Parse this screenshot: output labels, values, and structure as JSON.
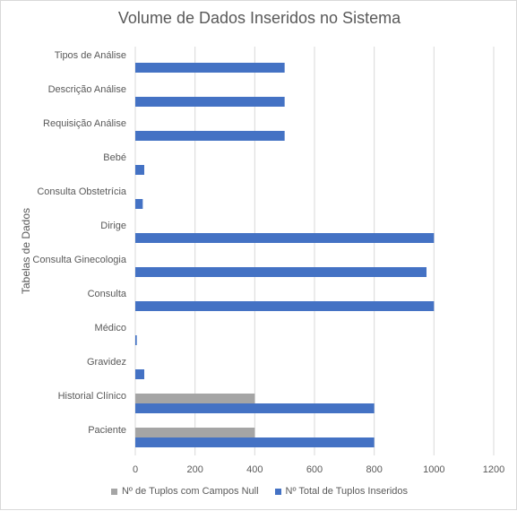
{
  "chart_data": {
    "type": "bar",
    "orientation": "horizontal",
    "title": "Volume de Dados Inseridos no Sistema",
    "xlabel": "",
    "ylabel": "Tabelas de Dados",
    "xlim": [
      0,
      1200
    ],
    "xticks": [
      0,
      200,
      400,
      600,
      800,
      1000,
      1200
    ],
    "grid": "vertical",
    "legend_position": "bottom",
    "categories": [
      "Tipos de Análise",
      "Descrição Análise",
      "Requisição Análise",
      "Bebé",
      "Consulta Obstetrícia",
      "Dirige",
      "Consulta Ginecologia",
      "Consulta",
      "Médico",
      "Gravidez",
      "Historial Clínico",
      "Paciente"
    ],
    "series": [
      {
        "name": "Nº de Tuplos com Campos Null",
        "color": "#a5a5a5",
        "values": [
          0,
          0,
          0,
          0,
          0,
          0,
          0,
          0,
          0,
          0,
          400,
          400
        ]
      },
      {
        "name": "Nº Total de Tuplos Inseridos",
        "color": "#4472c4",
        "values": [
          500,
          500,
          500,
          30,
          25,
          1000,
          975,
          1000,
          5,
          30,
          800,
          800
        ]
      }
    ]
  }
}
